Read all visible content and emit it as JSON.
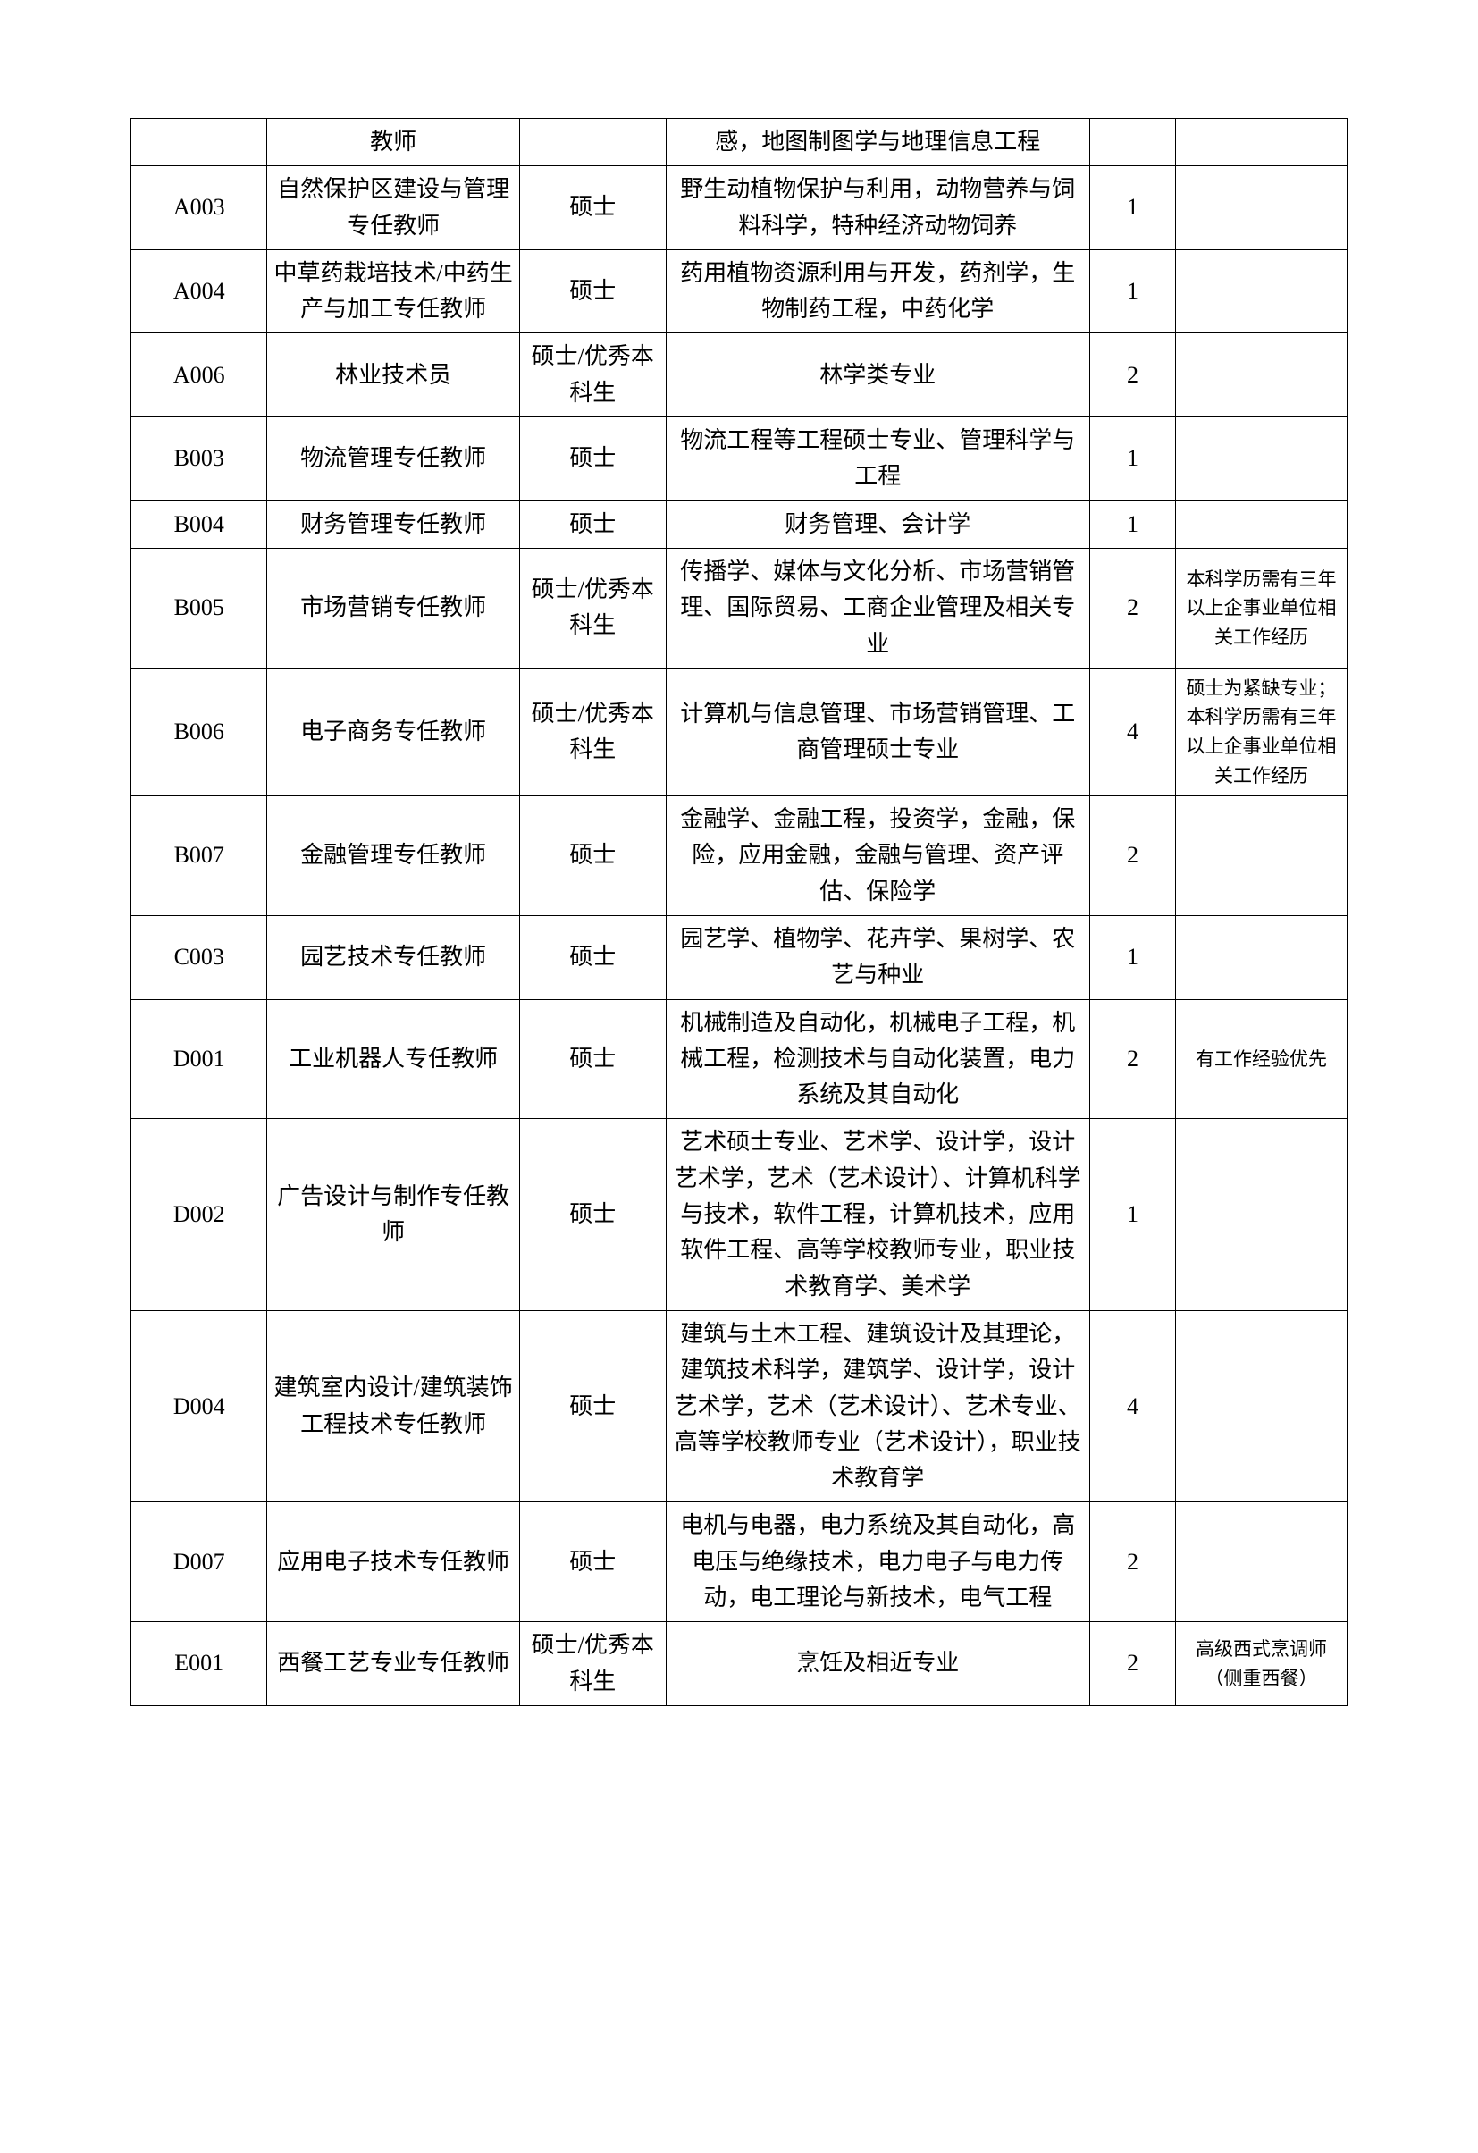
{
  "table": {
    "columns": [
      {
        "key": "code",
        "class": "col-code"
      },
      {
        "key": "title",
        "class": "col-title"
      },
      {
        "key": "edu",
        "class": "col-edu"
      },
      {
        "key": "major",
        "class": "col-major"
      },
      {
        "key": "count",
        "class": "col-count"
      },
      {
        "key": "note",
        "class": "col-note"
      }
    ],
    "rows": [
      {
        "code": "",
        "title": "教师",
        "edu": "",
        "major": "感，地图制图学与地理信息工程",
        "count": "",
        "note": ""
      },
      {
        "code": "A003",
        "title": "自然保护区建设与管理专任教师",
        "edu": "硕士",
        "major": "野生动植物保护与利用，动物营养与饲料科学，特种经济动物饲养",
        "count": "1",
        "note": ""
      },
      {
        "code": "A004",
        "title": "中草药栽培技术/中药生产与加工专任教师",
        "edu": "硕士",
        "major": "药用植物资源利用与开发，药剂学，生物制药工程，中药化学",
        "count": "1",
        "note": ""
      },
      {
        "code": "A006",
        "title": "林业技术员",
        "edu": "硕士/优秀本科生",
        "major": "林学类专业",
        "count": "2",
        "note": ""
      },
      {
        "code": "B003",
        "title": "物流管理专任教师",
        "edu": "硕士",
        "major": "物流工程等工程硕士专业、管理科学与工程",
        "count": "1",
        "note": ""
      },
      {
        "code": "B004",
        "title": "财务管理专任教师",
        "edu": "硕士",
        "major": "财务管理、会计学",
        "count": "1",
        "note": ""
      },
      {
        "code": "B005",
        "title": "市场营销专任教师",
        "edu": "硕士/优秀本科生",
        "major": "传播学、媒体与文化分析、市场营销管理、国际贸易、工商企业管理及相关专业",
        "count": "2",
        "note": "本科学历需有三年以上企事业单位相关工作经历"
      },
      {
        "code": "B006",
        "title": "电子商务专任教师",
        "edu": "硕士/优秀本科生",
        "major": "计算机与信息管理、市场营销管理、工商管理硕士专业",
        "count": "4",
        "note": "硕士为紧缺专业；本科学历需有三年以上企事业单位相关工作经历"
      },
      {
        "code": "B007",
        "title": "金融管理专任教师",
        "edu": "硕士",
        "major": "金融学、金融工程，投资学，金融，保险，应用金融，金融与管理、资产评估、保险学",
        "count": "2",
        "note": ""
      },
      {
        "code": "C003",
        "title": "园艺技术专任教师",
        "edu": "硕士",
        "major": "园艺学、植物学、花卉学、果树学、农艺与种业",
        "count": "1",
        "note": ""
      },
      {
        "code": "D001",
        "title": "工业机器人专任教师",
        "edu": "硕士",
        "major": "机械制造及自动化，机械电子工程，机械工程，检测技术与自动化装置，电力系统及其自动化",
        "count": "2",
        "note": "有工作经验优先"
      },
      {
        "code": "D002",
        "title": "广告设计与制作专任教师",
        "edu": "硕士",
        "major": "艺术硕士专业、艺术学、设计学，设计艺术学，艺术（艺术设计）、计算机科学与技术，软件工程，计算机技术，应用软件工程、高等学校教师专业，职业技术教育学、美术学",
        "count": "1",
        "note": ""
      },
      {
        "code": "D004",
        "title": "建筑室内设计/建筑装饰工程技术专任教师",
        "edu": "硕士",
        "major": "建筑与土木工程、建筑设计及其理论，建筑技术科学，建筑学、设计学，设计艺术学，艺术（艺术设计）、艺术专业、高等学校教师专业（艺术设计），职业技术教育学",
        "count": "4",
        "note": ""
      },
      {
        "code": "D007",
        "title": "应用电子技术专任教师",
        "edu": "硕士",
        "major": "电机与电器，电力系统及其自动化，高电压与绝缘技术，电力电子与电力传动，电工理论与新技术，电气工程",
        "count": "2",
        "note": ""
      },
      {
        "code": "E001",
        "title": "西餐工艺专业专任教师",
        "edu": "硕士/优秀本科生",
        "major": "烹饪及相近专业",
        "count": "2",
        "note": "高级西式烹调师（侧重西餐）"
      }
    ],
    "border_color": "#000000",
    "background_color": "#ffffff",
    "text_color": "#000000",
    "cell_fontsize_main": 26,
    "cell_fontsize_note": 21
  }
}
